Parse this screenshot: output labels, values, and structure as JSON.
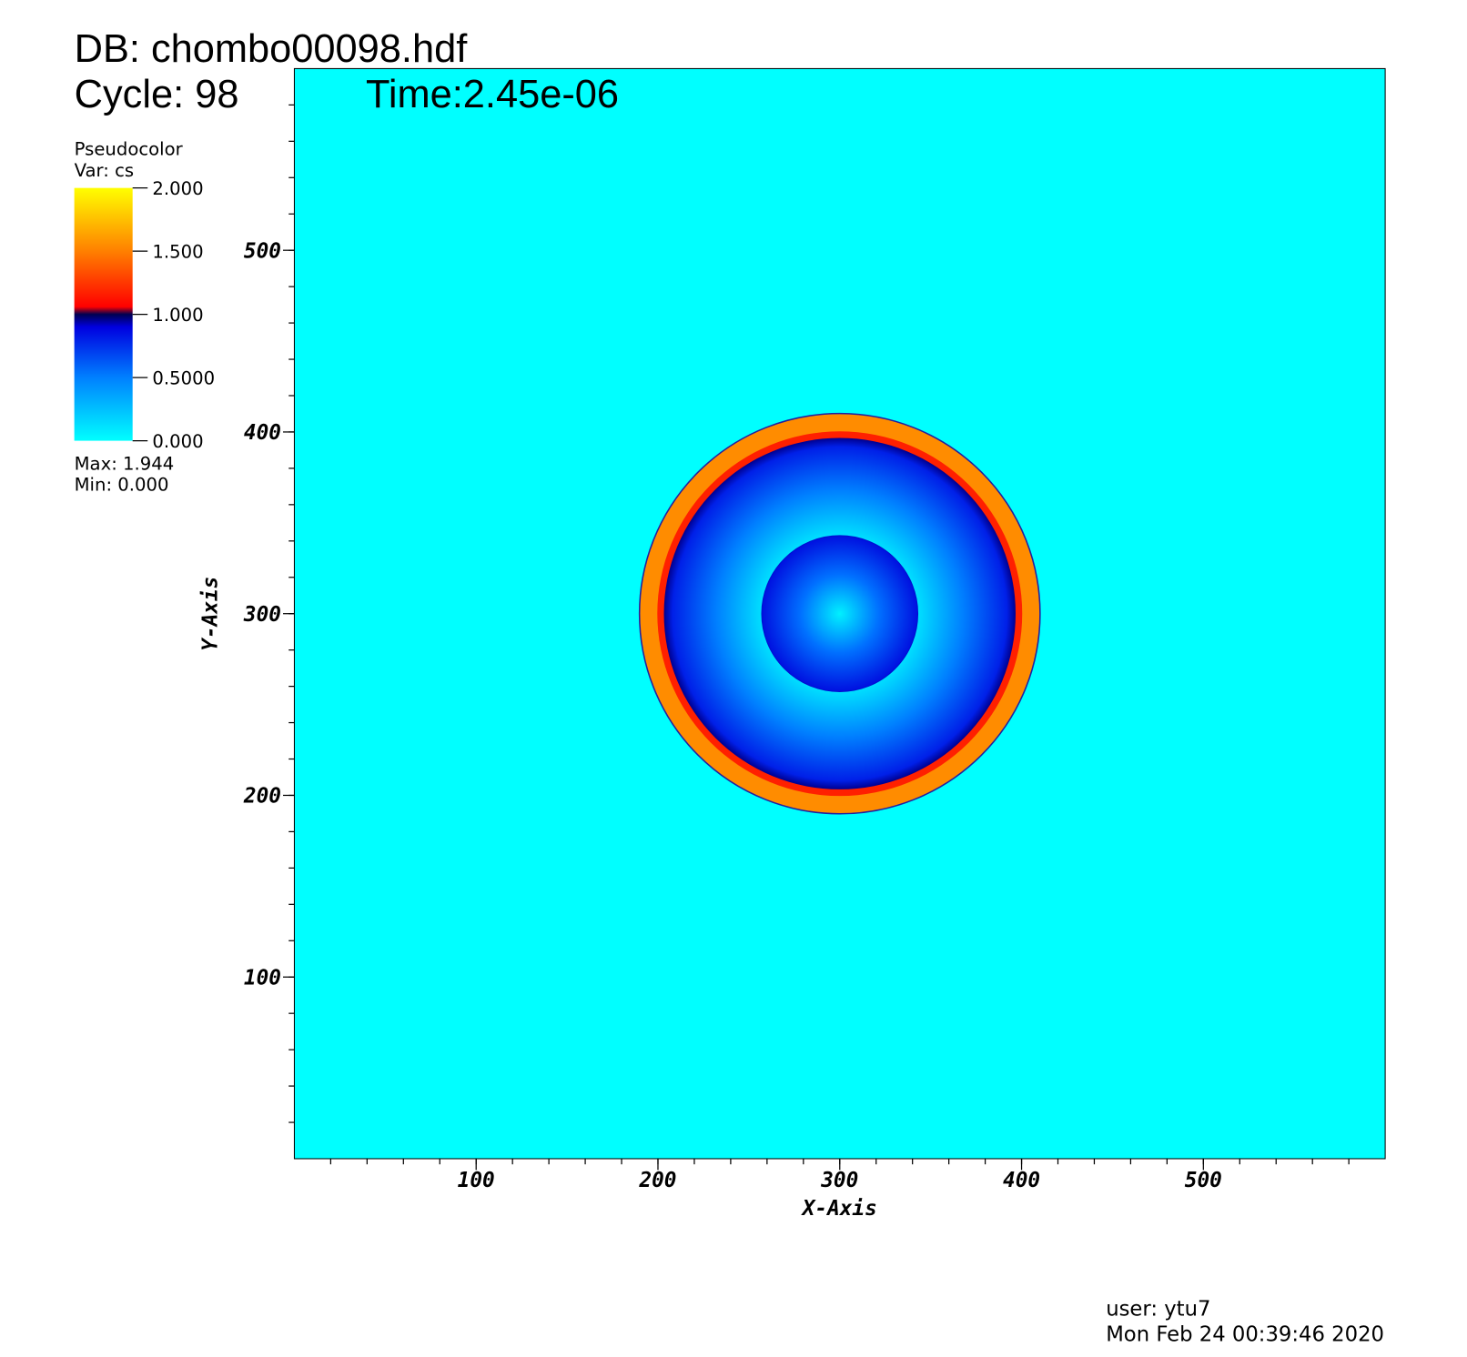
{
  "chart_data": {
    "type": "pseudocolor",
    "title": "DB: chombo00098.hdf",
    "cycle": "Cycle: 98",
    "time": "Time:2.45e-06",
    "x_label": "X-Axis",
    "y_label": "Y-Axis",
    "xlim": [
      0,
      600
    ],
    "ylim": [
      0,
      600
    ],
    "xticks": [
      100,
      200,
      300,
      400,
      500
    ],
    "yticks": [
      100,
      200,
      300,
      400,
      500
    ],
    "legend": {
      "plot": "Pseudocolor",
      "var": "Var: cs",
      "lim": [
        0,
        2
      ],
      "ticks": [
        {
          "value": 2,
          "label": "2.000"
        },
        {
          "value": 1.5,
          "label": "1.500"
        },
        {
          "value": 1,
          "label": "1.000"
        },
        {
          "value": 0.5,
          "label": "0.5000"
        },
        {
          "value": 0,
          "label": "0.000"
        }
      ],
      "max": "Max:  1.944",
      "min": "Min:  0.000"
    },
    "user": "user: ytu7",
    "date": "Mon Feb 24 00:39:46 2020"
  }
}
